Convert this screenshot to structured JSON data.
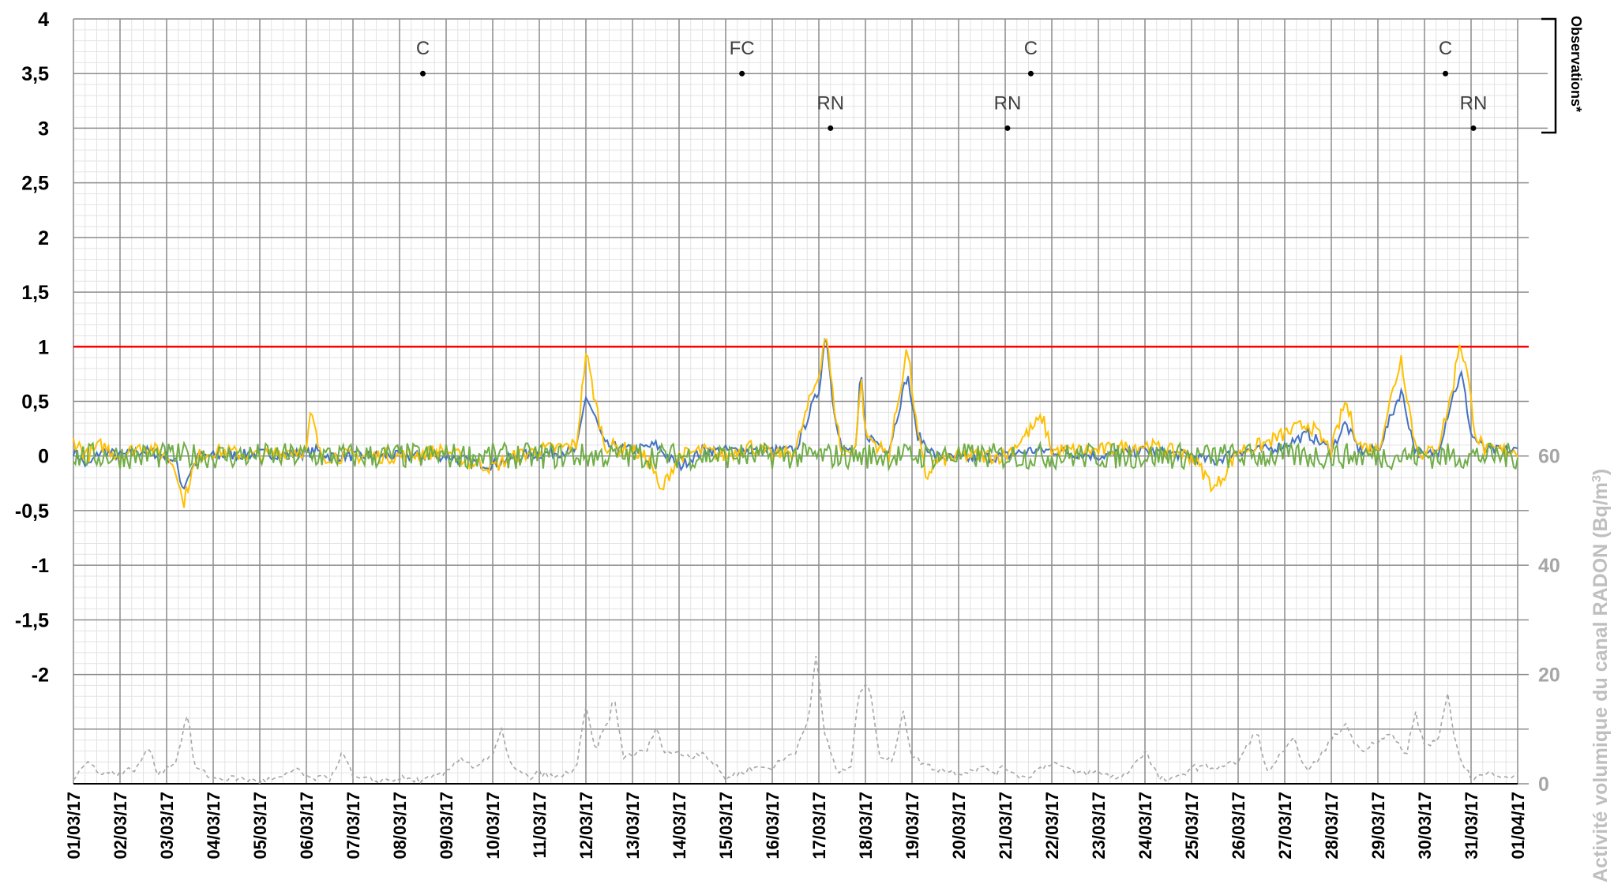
{
  "chart_data": {
    "type": "line",
    "x_start": "01/03/17",
    "x_end": "01/04/17",
    "x_tick_labels": [
      "01/03/17",
      "02/03/17",
      "03/03/17",
      "04/03/17",
      "05/03/17",
      "06/03/17",
      "07/03/17",
      "08/03/17",
      "09/03/17",
      "10/03/17",
      "11/03/17",
      "12/03/17",
      "13/03/17",
      "14/03/17",
      "15/03/17",
      "16/03/17",
      "17/03/17",
      "18/03/17",
      "19/03/17",
      "20/03/17",
      "21/03/17",
      "22/03/17",
      "23/03/17",
      "24/03/17",
      "25/03/17",
      "26/03/17",
      "27/03/17",
      "28/03/17",
      "29/03/17",
      "30/03/17",
      "31/03/17",
      "01/04/17"
    ],
    "y_left_tick_labels": [
      "4",
      "3,5",
      "3",
      "2,5",
      "2",
      "1,5",
      "1",
      "0,5",
      "0",
      "-0,5",
      "-1",
      "-1,5",
      "-2"
    ],
    "y_left_range": [
      -3,
      4
    ],
    "y_right_tick_labels": [
      "60",
      "40",
      "20",
      "0"
    ],
    "y_right_range": [
      0,
      60
    ],
    "y_right_label_main": "Activité volumique du canal RADON (Bq/m",
    "y_right_label_sup": "3",
    "y_right_label_end": ")",
    "observations_label": "Observations*",
    "threshold": {
      "value": 1,
      "color": "#ff0000"
    },
    "observations": [
      {
        "label": "C",
        "day": 7.5,
        "y": 3.5
      },
      {
        "label": "FC",
        "day": 14.35,
        "y": 3.5
      },
      {
        "label": "RN",
        "day": 16.25,
        "y": 3
      },
      {
        "label": "RN",
        "day": 20.05,
        "y": 3
      },
      {
        "label": "C",
        "day": 20.55,
        "y": 3.5
      },
      {
        "label": "C",
        "day": 29.45,
        "y": 3.5
      },
      {
        "label": "RN",
        "day": 30.05,
        "y": 3
      }
    ],
    "series": [
      {
        "color": "#4472c4",
        "axis": "left",
        "base_noise": 0.05,
        "points": [
          [
            0,
            0.05
          ],
          [
            0.3,
            -0.1
          ],
          [
            0.6,
            0.05
          ],
          [
            1,
            0.0
          ],
          [
            1.5,
            0.05
          ],
          [
            2,
            0.0
          ],
          [
            2.2,
            -0.05
          ],
          [
            2.35,
            -0.3
          ],
          [
            2.5,
            -0.15
          ],
          [
            2.7,
            0.0
          ],
          [
            3,
            0.0
          ],
          [
            4,
            0.02
          ],
          [
            5,
            0.02
          ],
          [
            5.2,
            0.05
          ],
          [
            5.5,
            0.0
          ],
          [
            6,
            0.0
          ],
          [
            7,
            0.0
          ],
          [
            8,
            0.0
          ],
          [
            8.5,
            -0.05
          ],
          [
            9,
            -0.08
          ],
          [
            9.5,
            0.0
          ],
          [
            10,
            0.02
          ],
          [
            10.8,
            0.05
          ],
          [
            11,
            0.55
          ],
          [
            11.2,
            0.35
          ],
          [
            11.4,
            0.1
          ],
          [
            12,
            0.05
          ],
          [
            12.5,
            0.1
          ],
          [
            13,
            -0.1
          ],
          [
            13.5,
            0.05
          ],
          [
            14,
            0.05
          ],
          [
            14.5,
            0.05
          ],
          [
            15,
            0.05
          ],
          [
            15.5,
            0.05
          ],
          [
            15.8,
            0.4
          ],
          [
            16,
            0.6
          ],
          [
            16.15,
            1.15
          ],
          [
            16.3,
            0.5
          ],
          [
            16.5,
            0.05
          ],
          [
            16.8,
            0.05
          ],
          [
            16.9,
            0.8
          ],
          [
            17,
            0.2
          ],
          [
            17.5,
            0.05
          ],
          [
            17.9,
            0.75
          ],
          [
            18.1,
            0.2
          ],
          [
            18.5,
            0.0
          ],
          [
            19,
            -0.03
          ],
          [
            20,
            0.0
          ],
          [
            20.5,
            0.05
          ],
          [
            21,
            0.05
          ],
          [
            22,
            0.0
          ],
          [
            23,
            0.05
          ],
          [
            24,
            0.0
          ],
          [
            24.5,
            -0.05
          ],
          [
            25,
            0.05
          ],
          [
            25.5,
            0.05
          ],
          [
            26,
            0.1
          ],
          [
            26.5,
            0.2
          ],
          [
            27,
            0.05
          ],
          [
            27.3,
            0.3
          ],
          [
            27.6,
            0.05
          ],
          [
            28,
            0.05
          ],
          [
            28.5,
            0.6
          ],
          [
            28.8,
            0.05
          ],
          [
            29,
            0.0
          ],
          [
            29.3,
            0.05
          ],
          [
            29.6,
            0.55
          ],
          [
            29.8,
            0.75
          ],
          [
            30,
            0.2
          ],
          [
            30.3,
            0.05
          ],
          [
            31,
            0.05
          ]
        ]
      },
      {
        "color": "#ffc000",
        "axis": "left",
        "base_noise": 0.07,
        "points": [
          [
            0,
            0.15
          ],
          [
            0.3,
            0.0
          ],
          [
            0.6,
            0.1
          ],
          [
            1,
            0.0
          ],
          [
            1.5,
            0.1
          ],
          [
            2,
            0.0
          ],
          [
            2.2,
            -0.1
          ],
          [
            2.35,
            -0.45
          ],
          [
            2.5,
            -0.2
          ],
          [
            2.7,
            0.0
          ],
          [
            3,
            0.05
          ],
          [
            4,
            0.0
          ],
          [
            4.6,
            0.05
          ],
          [
            5,
            0.05
          ],
          [
            5.1,
            0.4
          ],
          [
            5.3,
            0.0
          ],
          [
            6,
            0.0
          ],
          [
            7,
            0.0
          ],
          [
            8,
            0.05
          ],
          [
            8.5,
            -0.05
          ],
          [
            9,
            -0.1
          ],
          [
            9.5,
            0.0
          ],
          [
            10,
            0.05
          ],
          [
            10.8,
            0.1
          ],
          [
            11,
            0.95
          ],
          [
            11.2,
            0.5
          ],
          [
            11.4,
            0.1
          ],
          [
            12,
            0.05
          ],
          [
            12.4,
            -0.05
          ],
          [
            12.6,
            -0.35
          ],
          [
            12.8,
            -0.15
          ],
          [
            13,
            0.0
          ],
          [
            13.5,
            0.05
          ],
          [
            14,
            0.0
          ],
          [
            14.5,
            0.1
          ],
          [
            15,
            0.0
          ],
          [
            15.5,
            0.05
          ],
          [
            15.8,
            0.5
          ],
          [
            16,
            0.75
          ],
          [
            16.15,
            1.15
          ],
          [
            16.3,
            0.55
          ],
          [
            16.5,
            0.0
          ],
          [
            16.8,
            0.1
          ],
          [
            16.9,
            0.75
          ],
          [
            17,
            0.2
          ],
          [
            17.5,
            0.0
          ],
          [
            17.9,
            1.0
          ],
          [
            18.1,
            0.25
          ],
          [
            18.3,
            -0.2
          ],
          [
            18.5,
            -0.05
          ],
          [
            19,
            0.0
          ],
          [
            20,
            0.0
          ],
          [
            20.8,
            0.35
          ],
          [
            21,
            0.05
          ],
          [
            22,
            0.05
          ],
          [
            23,
            0.1
          ],
          [
            23.5,
            0.05
          ],
          [
            24,
            0.0
          ],
          [
            24.5,
            -0.3
          ],
          [
            25,
            0.05
          ],
          [
            25.5,
            0.1
          ],
          [
            26,
            0.2
          ],
          [
            26.5,
            0.3
          ],
          [
            27,
            0.05
          ],
          [
            27.3,
            0.5
          ],
          [
            27.6,
            0.1
          ],
          [
            28,
            0.05
          ],
          [
            28.5,
            0.9
          ],
          [
            28.8,
            0.1
          ],
          [
            29,
            0.0
          ],
          [
            29.3,
            0.1
          ],
          [
            29.6,
            0.6
          ],
          [
            29.75,
            1.05
          ],
          [
            29.9,
            0.8
          ],
          [
            30.1,
            0.2
          ],
          [
            30.3,
            0.05
          ],
          [
            31,
            0.05
          ]
        ]
      },
      {
        "color": "#70ad47",
        "axis": "left",
        "base_noise": 0.12,
        "points": [
          [
            0,
            0.0
          ],
          [
            31,
            0.0
          ]
        ]
      },
      {
        "color": "#a6a6a6",
        "axis": "right",
        "dashed": true,
        "base_noise": 0.6,
        "points": [
          [
            0,
            1
          ],
          [
            0.3,
            4
          ],
          [
            0.6,
            2
          ],
          [
            1,
            2
          ],
          [
            1.4,
            3
          ],
          [
            1.6,
            7
          ],
          [
            1.8,
            2
          ],
          [
            2.2,
            4
          ],
          [
            2.45,
            13
          ],
          [
            2.6,
            3
          ],
          [
            3,
            1
          ],
          [
            3.5,
            1
          ],
          [
            4,
            0.5
          ],
          [
            4.5,
            1
          ],
          [
            4.8,
            3
          ],
          [
            5,
            1
          ],
          [
            5.5,
            1
          ],
          [
            5.8,
            6
          ],
          [
            6,
            1
          ],
          [
            6.5,
            0.5
          ],
          [
            7,
            1
          ],
          [
            7.5,
            0.5
          ],
          [
            8,
            2
          ],
          [
            8.3,
            5
          ],
          [
            8.6,
            3
          ],
          [
            9,
            5
          ],
          [
            9.2,
            10
          ],
          [
            9.4,
            3
          ],
          [
            9.8,
            1
          ],
          [
            10,
            2
          ],
          [
            10.4,
            1
          ],
          [
            10.8,
            3
          ],
          [
            11,
            14
          ],
          [
            11.2,
            6
          ],
          [
            11.5,
            12
          ],
          [
            11.6,
            16
          ],
          [
            11.8,
            5
          ],
          [
            12.3,
            6
          ],
          [
            12.5,
            10
          ],
          [
            12.7,
            6
          ],
          [
            13.3,
            5
          ],
          [
            13.5,
            6
          ],
          [
            13.8,
            3
          ],
          [
            14,
            1
          ],
          [
            14.3,
            2
          ],
          [
            14.6,
            3
          ],
          [
            15,
            3
          ],
          [
            15.5,
            6
          ],
          [
            15.8,
            13
          ],
          [
            15.95,
            24
          ],
          [
            16.1,
            10
          ],
          [
            16.4,
            2
          ],
          [
            16.7,
            3
          ],
          [
            16.85,
            17
          ],
          [
            17.1,
            18
          ],
          [
            17.3,
            5
          ],
          [
            17.6,
            4
          ],
          [
            17.8,
            14
          ],
          [
            18,
            5
          ],
          [
            18.4,
            3
          ],
          [
            19,
            2
          ],
          [
            19.5,
            3
          ],
          [
            19.8,
            2
          ],
          [
            20,
            3
          ],
          [
            20.4,
            1
          ],
          [
            20.8,
            3
          ],
          [
            21,
            4
          ],
          [
            21.5,
            2
          ],
          [
            22,
            2
          ],
          [
            22.5,
            1
          ],
          [
            23,
            6
          ],
          [
            23.3,
            1
          ],
          [
            23.6,
            0.5
          ],
          [
            24,
            3
          ],
          [
            24.5,
            3
          ],
          [
            25,
            4
          ],
          [
            25.4,
            10
          ],
          [
            25.6,
            2
          ],
          [
            26,
            6
          ],
          [
            26.2,
            8
          ],
          [
            26.5,
            2
          ],
          [
            27,
            8
          ],
          [
            27.3,
            11
          ],
          [
            27.6,
            6
          ],
          [
            28,
            8
          ],
          [
            28.3,
            9
          ],
          [
            28.6,
            5
          ],
          [
            28.8,
            13
          ],
          [
            29,
            7
          ],
          [
            29.3,
            8
          ],
          [
            29.5,
            16
          ],
          [
            29.7,
            6
          ],
          [
            30,
            1
          ],
          [
            30.5,
            2
          ],
          [
            31,
            1
          ]
        ]
      }
    ],
    "grid": true
  }
}
